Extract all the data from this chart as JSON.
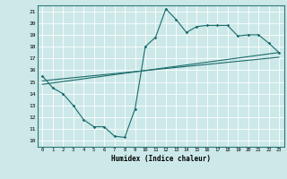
{
  "title": "",
  "xlabel": "Humidex (Indice chaleur)",
  "bg_color": "#cce8e8",
  "line_color": "#1a6b6b",
  "grid_color": "#ffffff",
  "xlim": [
    -0.5,
    23.5
  ],
  "ylim": [
    9.5,
    21.5
  ],
  "xticks": [
    0,
    1,
    2,
    3,
    4,
    5,
    6,
    7,
    8,
    9,
    10,
    11,
    12,
    13,
    14,
    15,
    16,
    17,
    18,
    19,
    20,
    21,
    22,
    23
  ],
  "yticks": [
    10,
    11,
    12,
    13,
    14,
    15,
    16,
    17,
    18,
    19,
    20,
    21
  ],
  "curve1_x": [
    0,
    1,
    2,
    3,
    4,
    5,
    6,
    7,
    8,
    9,
    10,
    11,
    12,
    13,
    14,
    15,
    16,
    17,
    18,
    19,
    20,
    21,
    22,
    23
  ],
  "curve1_y": [
    15.5,
    14.5,
    14.0,
    13.0,
    11.8,
    11.2,
    11.2,
    10.4,
    10.3,
    12.7,
    18.0,
    18.8,
    21.2,
    20.3,
    19.2,
    19.7,
    19.8,
    19.8,
    19.8,
    18.9,
    19.0,
    19.0,
    18.3,
    17.5
  ],
  "line2_x": [
    0,
    23
  ],
  "line2_y": [
    14.8,
    17.5
  ],
  "line3_x": [
    0,
    23
  ],
  "line3_y": [
    15.1,
    17.1
  ]
}
